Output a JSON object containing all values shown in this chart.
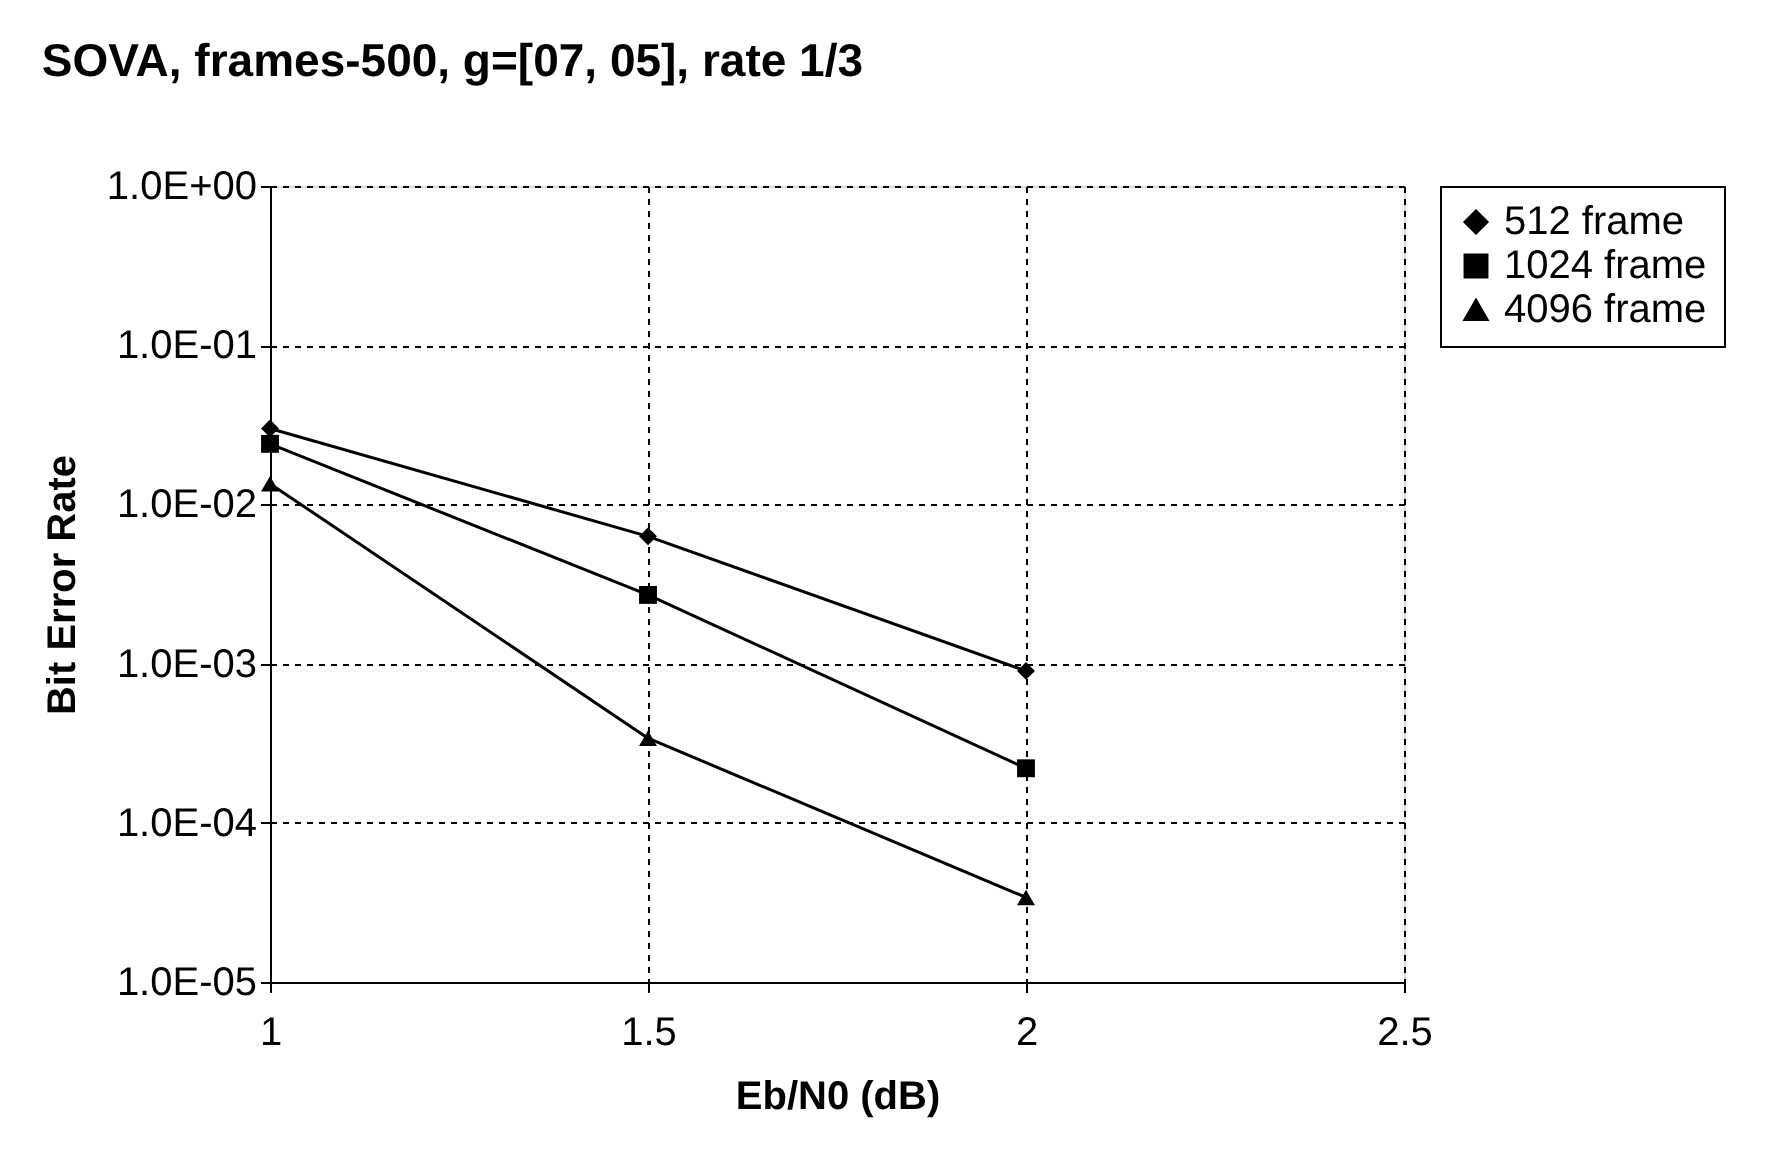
{
  "chart_data": {
    "type": "line",
    "title": "SOVA, frames-500, g=[07, 05], rate 1/3",
    "xlabel": "Eb/N0 (dB)",
    "ylabel": "Bit Error Rate",
    "x": [
      1,
      1.5,
      2
    ],
    "series": [
      {
        "name": "512 frame",
        "color": "#000000",
        "marker": "diamond",
        "values": [
          0.03,
          0.0063,
          0.0009
        ]
      },
      {
        "name": "1024 frame",
        "color": "#000000",
        "marker": "square",
        "values": [
          0.024,
          0.0027,
          0.00022
        ]
      },
      {
        "name": "4096 frame",
        "color": "#000000",
        "marker": "triangle",
        "values": [
          0.0135,
          0.00034,
          3.4e-05
        ]
      }
    ],
    "log": "y",
    "xlim": [
      1,
      2.5
    ],
    "xticks": [
      1,
      1.5,
      2,
      2.5
    ],
    "ylim": [
      1e-05,
      1
    ],
    "yticks": [
      {
        "value": 1,
        "label": "1.0E+00"
      },
      {
        "value": 0.1,
        "label": "1.0E-01"
      },
      {
        "value": 0.01,
        "label": "1.0E-02"
      },
      {
        "value": 0.001,
        "label": "1.0E-03"
      },
      {
        "value": 0.0001,
        "label": "1.0E-04"
      },
      {
        "value": 1e-05,
        "label": "1.0E-05"
      }
    ],
    "grid": true,
    "legend": "right",
    "line_style": "solid"
  }
}
